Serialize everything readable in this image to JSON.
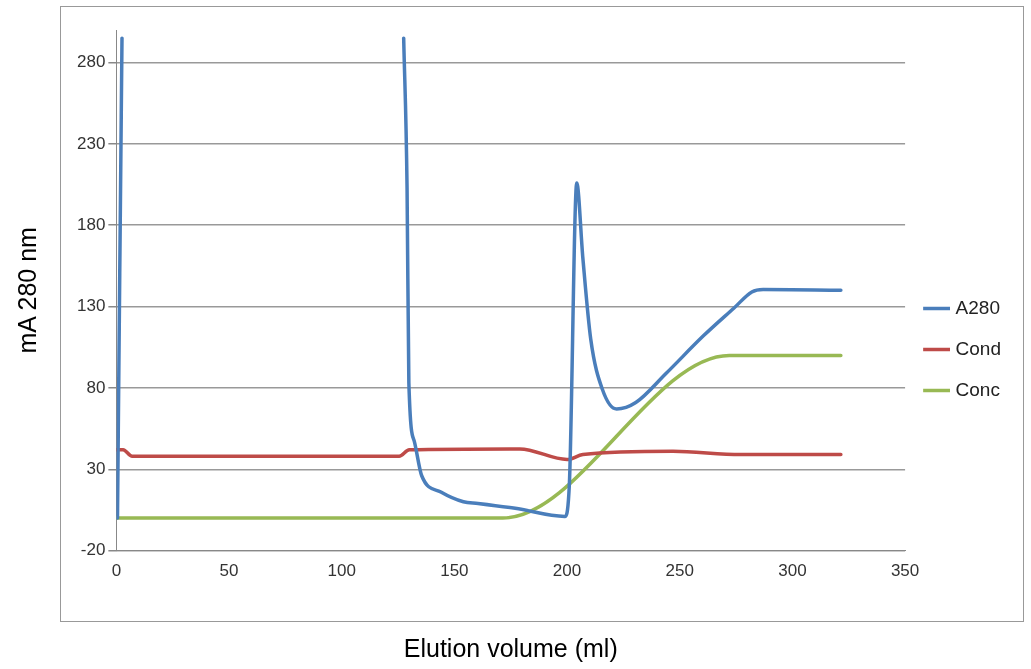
{
  "chart_data": {
    "type": "line",
    "xlabel": "Elution volume (ml)",
    "ylabel": "mA 280 nm",
    "xlim": [
      0,
      350
    ],
    "xticks": [
      0,
      50,
      100,
      150,
      200,
      250,
      300,
      350
    ],
    "ylim": [
      -20,
      300
    ],
    "yticks": [
      -20,
      30,
      80,
      130,
      180,
      230,
      280
    ],
    "grid": "y",
    "legend": "right",
    "marker": "none",
    "line_style": "solid",
    "series": [
      {
        "name": "A280",
        "color": "#4a7ebb",
        "x": [
          0.5,
          1.5,
          2.5,
          65,
          127.5,
          129,
          129.8,
          132.3,
          135.5,
          144,
          154,
          160.5,
          177,
          199,
          201,
          204.3,
          207,
          210.5,
          215.7,
          222,
          230.5,
          244,
          260.5,
          274,
          282,
          287,
          321.5
        ],
        "values": [
          0,
          150,
          295,
          null,
          295,
          203,
          83,
          46.7,
          26,
          16,
          10,
          9,
          6,
          1,
          20,
          206,
          160,
          110,
          79,
          67,
          71,
          89,
          112,
          129,
          139,
          140.5,
          140
        ]
      },
      {
        "name": "Cond",
        "color": "#be4b48",
        "x": [
          0,
          3,
          7,
          125.5,
          130,
          179,
          200,
          207,
          247,
          277,
          321.5
        ],
        "values": [
          42,
          42,
          38,
          38,
          42,
          42.5,
          36,
          39,
          41,
          39,
          39
        ]
      },
      {
        "name": "Conc",
        "color": "#98b954",
        "x": [
          0,
          171.5,
          272,
          321.5
        ],
        "values": [
          0,
          0,
          100,
          100
        ]
      }
    ]
  }
}
